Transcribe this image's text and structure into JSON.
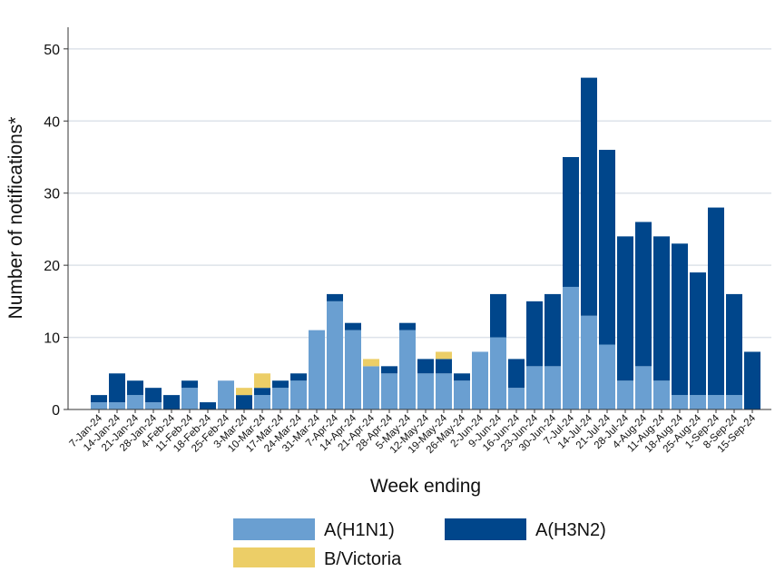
{
  "chart_data": {
    "type": "stacked-bar",
    "x_label": "Week ending",
    "y_label": "Number of notifications*",
    "categories": [
      "7-Jan-24",
      "14-Jan-24",
      "21-Jan-24",
      "28-Jan-24",
      "4-Feb-24",
      "11-Feb-24",
      "18-Feb-24",
      "25-Feb-24",
      "3-Mar-24",
      "10-Mar-24",
      "17-Mar-24",
      "24-Mar-24",
      "31-Mar-24",
      "7-Apr-24",
      "14-Apr-24",
      "21-Apr-24",
      "28-Apr-24",
      "5-May-24",
      "12-May-24",
      "19-May-24",
      "26-May-24",
      "2-Jun-24",
      "9-Jun-24",
      "16-Jun-24",
      "23-Jun-24",
      "30-Jun-24",
      "7-Jul-24",
      "14-Jul-24",
      "21-Jul-24",
      "28-Jul-24",
      "4-Aug-24",
      "11-Aug-24",
      "18-Aug-24",
      "25-Aug-24",
      "1-Sep-24",
      "8-Sep-24",
      "15-Sep-24"
    ],
    "series": [
      {
        "name": "A(H1N1)",
        "color": "#6a9fd1",
        "values": [
          1,
          1,
          2,
          1,
          0,
          3,
          0,
          4,
          0,
          2,
          3,
          4,
          11,
          15,
          11,
          6,
          5,
          11,
          5,
          5,
          4,
          8,
          10,
          3,
          6,
          6,
          17,
          13,
          9,
          4,
          6,
          4,
          2,
          2,
          2,
          2,
          0
        ]
      },
      {
        "name": "A(H3N2)",
        "color": "#00468b",
        "values": [
          1,
          4,
          2,
          2,
          2,
          1,
          1,
          0,
          2,
          1,
          1,
          1,
          0,
          1,
          1,
          0,
          1,
          1,
          2,
          2,
          1,
          0,
          6,
          4,
          9,
          10,
          18,
          33,
          27,
          20,
          20,
          20,
          21,
          17,
          26,
          14,
          8
        ]
      },
      {
        "name": "B/Victoria",
        "color": "#ecce67",
        "values": [
          0,
          0,
          0,
          0,
          0,
          0,
          0,
          0,
          1,
          2,
          0,
          0,
          0,
          0,
          0,
          1,
          0,
          0,
          0,
          1,
          0,
          0,
          0,
          0,
          0,
          0,
          0,
          0,
          0,
          0,
          0,
          0,
          0,
          0,
          0,
          0,
          0
        ]
      }
    ],
    "ylim": [
      0,
      53
    ],
    "yticks": [
      0,
      10,
      20,
      30,
      40,
      50
    ],
    "grid": true,
    "legend": "bottom"
  }
}
